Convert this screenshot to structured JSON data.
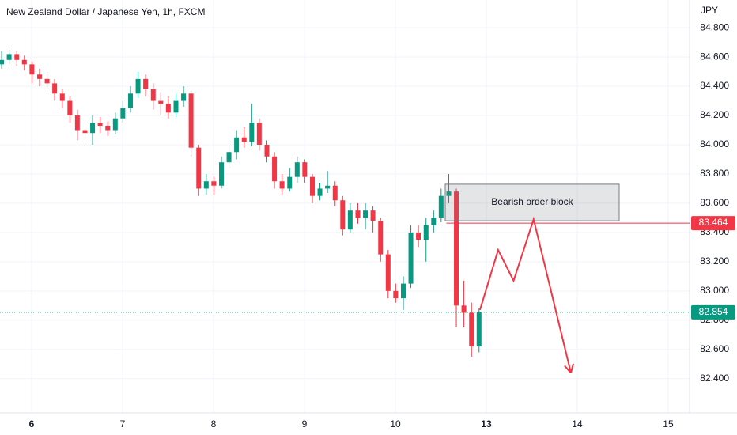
{
  "chart_data": {
    "type": "candlestick",
    "title": "New Zealand Dollar / Japanese Yen, 1h, FXCM",
    "y_axis_label": "JPY",
    "up_color": "#089981",
    "down_color": "#f23645",
    "grid": true,
    "xlim": [
      -0.348,
      7.235
    ],
    "xticks": [
      {
        "value": 0,
        "label": "6"
      },
      {
        "value": 1,
        "label": "7"
      },
      {
        "value": 2,
        "label": "8"
      },
      {
        "value": 3,
        "label": "9"
      },
      {
        "value": 4,
        "label": "10"
      },
      {
        "value": 5,
        "label": "13"
      },
      {
        "value": 6,
        "label": "14"
      },
      {
        "value": 7,
        "label": "15"
      }
    ],
    "ylim": [
      82.166,
      84.99
    ],
    "yticks": [
      {
        "value": 82.4,
        "label": "82.400"
      },
      {
        "value": 82.6,
        "label": "82.600"
      },
      {
        "value": 82.8,
        "label": "82.800"
      },
      {
        "value": 83,
        "label": "83.000"
      },
      {
        "value": 83.2,
        "label": "83.200"
      },
      {
        "value": 83.4,
        "label": "83.400"
      },
      {
        "value": 83.6,
        "label": "83.600"
      },
      {
        "value": 83.8,
        "label": "83.800"
      },
      {
        "value": 84,
        "label": "84.000"
      },
      {
        "value": 84.2,
        "label": "84.200"
      },
      {
        "value": 84.4,
        "label": "84.400"
      },
      {
        "value": 84.6,
        "label": "84.600"
      },
      {
        "value": 84.8,
        "label": "84.800"
      }
    ],
    "x": [
      -0.33,
      -0.247,
      -0.163,
      -0.08,
      0.003,
      0.087,
      0.17,
      0.253,
      0.337,
      0.42,
      0.503,
      0.587,
      0.67,
      0.753,
      0.837,
      0.92,
      1.003,
      1.087,
      1.17,
      1.253,
      1.337,
      1.42,
      1.503,
      1.587,
      1.67,
      1.753,
      1.837,
      1.92,
      2.003,
      2.087,
      2.17,
      2.253,
      2.337,
      2.42,
      2.503,
      2.587,
      2.67,
      2.753,
      2.837,
      2.92,
      3.003,
      3.087,
      3.17,
      3.253,
      3.337,
      3.42,
      3.503,
      3.587,
      3.67,
      3.753,
      3.837,
      3.92,
      4.003,
      4.087,
      4.17,
      4.253,
      4.337,
      4.42,
      4.503,
      4.587,
      4.67,
      4.753,
      4.837,
      4.92
    ],
    "open": [
      84.55,
      84.58,
      84.62,
      84.58,
      84.55,
      84.48,
      84.45,
      84.42,
      84.35,
      84.3,
      84.2,
      84.1,
      84.08,
      84.15,
      84.13,
      84.1,
      84.18,
      84.25,
      84.35,
      84.45,
      84.38,
      84.3,
      84.28,
      84.22,
      84.3,
      84.35,
      83.98,
      83.7,
      83.75,
      83.72,
      83.88,
      83.95,
      84.05,
      84.02,
      84.15,
      84.0,
      83.92,
      83.75,
      83.7,
      83.78,
      83.88,
      83.78,
      83.65,
      83.7,
      83.72,
      83.62,
      83.42,
      83.55,
      83.5,
      83.55,
      83.48,
      83.25,
      83.0,
      82.95,
      83.05,
      83.4,
      83.35,
      83.45,
      83.5,
      83.65,
      83.68,
      82.9,
      82.85,
      82.62
    ],
    "high": [
      84.64,
      84.65,
      84.64,
      84.61,
      84.57,
      84.52,
      84.5,
      84.45,
      84.38,
      84.33,
      84.24,
      84.15,
      84.2,
      84.19,
      84.16,
      84.22,
      84.3,
      84.4,
      84.5,
      84.48,
      84.42,
      84.36,
      84.33,
      84.35,
      84.4,
      84.37,
      84.0,
      83.8,
      83.78,
      83.92,
      84.0,
      84.1,
      84.12,
      84.28,
      84.18,
      84.03,
      83.95,
      83.8,
      83.84,
      83.92,
      83.9,
      83.8,
      83.74,
      83.82,
      83.75,
      83.65,
      83.6,
      83.6,
      83.6,
      83.58,
      83.5,
      83.28,
      83.05,
      83.1,
      83.45,
      83.45,
      83.5,
      83.55,
      83.7,
      83.8,
      83.7,
      83.07,
      82.92,
      82.88
    ],
    "low": [
      84.52,
      84.55,
      84.54,
      84.51,
      84.42,
      84.4,
      84.38,
      84.3,
      84.25,
      84.15,
      84.03,
      84.02,
      84.0,
      84.08,
      84.06,
      84.07,
      84.15,
      84.22,
      84.32,
      84.33,
      84.24,
      84.2,
      84.18,
      84.19,
      84.26,
      83.92,
      83.65,
      83.66,
      83.66,
      83.7,
      83.84,
      83.9,
      83.98,
      83.99,
      83.96,
      83.88,
      83.7,
      83.66,
      83.68,
      83.74,
      83.74,
      83.6,
      83.62,
      83.67,
      83.58,
      83.38,
      83.4,
      83.46,
      83.42,
      83.4,
      83.2,
      82.95,
      82.92,
      82.87,
      83.02,
      83.3,
      83.2,
      83.4,
      83.47,
      83.6,
      82.75,
      82.75,
      82.55,
      82.58
    ],
    "close": [
      84.58,
      84.62,
      84.58,
      84.55,
      84.48,
      84.45,
      84.42,
      84.35,
      84.3,
      84.2,
      84.1,
      84.08,
      84.15,
      84.13,
      84.1,
      84.18,
      84.25,
      84.35,
      84.45,
      84.38,
      84.3,
      84.28,
      84.22,
      84.3,
      84.35,
      83.98,
      83.7,
      83.75,
      83.72,
      83.88,
      83.95,
      84.05,
      84.02,
      84.15,
      84.0,
      83.92,
      83.75,
      83.7,
      83.78,
      83.88,
      83.78,
      83.65,
      83.7,
      83.72,
      83.62,
      83.42,
      83.55,
      83.5,
      83.55,
      83.48,
      83.25,
      83.0,
      82.95,
      83.05,
      83.4,
      83.35,
      83.45,
      83.5,
      83.65,
      83.68,
      82.9,
      82.85,
      82.62,
      82.854
    ],
    "price_lines": [
      {
        "value": 83.464,
        "color": "#f23645",
        "x_start": 4.56
      },
      {
        "value": 82.854,
        "color": "#089981",
        "dotted": true
      }
    ],
    "annotations": [
      {
        "text": "Bearish order block",
        "x": [
          4.548,
          6.461
        ],
        "y": [
          83.48,
          83.73
        ]
      }
    ],
    "projection": {
      "color": "#f23645",
      "x": [
        4.93,
        5.13,
        5.3,
        5.52,
        5.93
      ],
      "y": [
        82.87,
        83.28,
        83.07,
        83.49,
        82.44
      ]
    }
  }
}
